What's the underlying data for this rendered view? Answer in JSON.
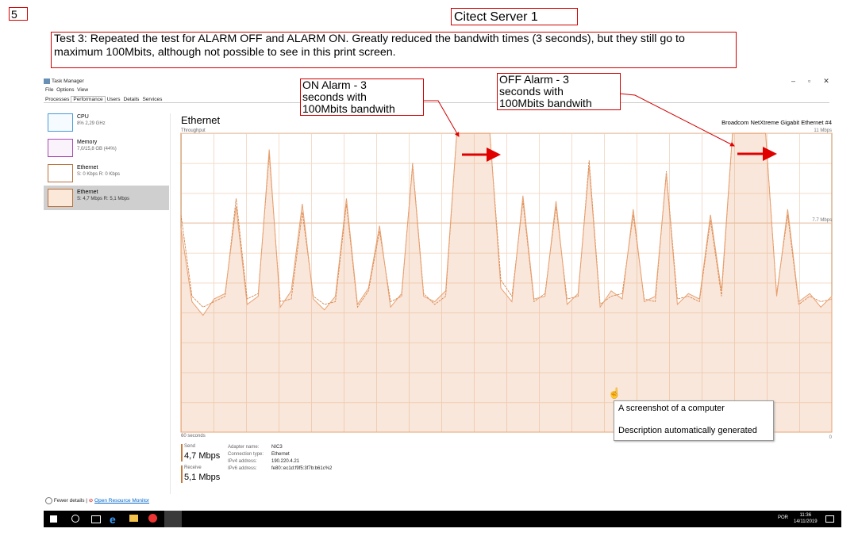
{
  "page_number": "5",
  "header": {
    "title": "Citect Server 1",
    "note": "Test 3: Repeated the test for ALARM OFF and ALARM ON. Greatly reduced the bandwith times (3 seconds), but they still go to maximum 100Mbits, although not possible to see in this print screen."
  },
  "callouts": [
    {
      "lines": [
        "ON Alarm - 3",
        "seconds with",
        "100Mbits bandwith"
      ]
    },
    {
      "lines": [
        "OFF Alarm - 3",
        "seconds with",
        "100Mbits bandwith"
      ]
    }
  ],
  "task_manager": {
    "title": "Task Manager",
    "menu": [
      "File",
      "Options",
      "View"
    ],
    "tabs": [
      "Processes",
      "Performance",
      "Users",
      "Details",
      "Services"
    ],
    "sidebar": [
      {
        "name": "CPU",
        "detail": "8% 2,29 GHz"
      },
      {
        "name": "Memory",
        "detail": "7,0/15,8 GB (44%)"
      },
      {
        "name": "Ethernet",
        "detail": "S: 0 Kbps R: 0 Kbps"
      },
      {
        "name": "Ethernet",
        "detail": "S: 4,7 Mbps R: 5,1 Mbps"
      }
    ],
    "adapter_title": "Ethernet",
    "adapter_model": "Broadcom NetXtreme Gigabit Ethernet #4",
    "graph": {
      "label": "Throughput",
      "x_label": "60 seconds",
      "ylim": [
        0,
        11
      ],
      "yticks": [
        {
          "value": 0,
          "label": "0"
        },
        {
          "value": 7.7,
          "label": "7.7 Mbps"
        },
        {
          "value": 11,
          "label": "11 Mbps"
        }
      ],
      "series": [
        {
          "name": "Send",
          "color": "#d07838",
          "values": [
            8.0,
            5.0,
            4.6,
            4.8,
            5.0,
            8.6,
            4.9,
            5.1,
            10.2,
            4.8,
            4.9,
            8.1,
            5.0,
            4.7,
            4.8,
            8.4,
            4.6,
            5.2,
            7.4,
            4.8,
            5.0,
            9.9,
            5.1,
            4.7,
            5.0,
            11,
            11,
            11,
            11,
            5.6,
            5.0,
            8.5,
            4.8,
            5.1,
            8.3,
            4.9,
            5.0,
            10.0,
            4.7,
            5.0,
            5.1,
            8.0,
            4.9,
            4.8,
            9.6,
            4.9,
            5.0,
            4.8,
            7.8,
            5.0,
            11,
            11,
            11,
            11,
            5.1,
            8.0,
            4.7,
            5.0,
            4.8,
            4.9
          ]
        },
        {
          "name": "Receive",
          "color": "#e8a070",
          "values": [
            7.5,
            4.8,
            4.3,
            4.9,
            5.1,
            8.3,
            4.7,
            5.0,
            10.4,
            4.6,
            5.2,
            8.4,
            4.9,
            4.5,
            5.0,
            8.6,
            4.7,
            5.3,
            7.6,
            4.6,
            5.1,
            9.8,
            5.0,
            4.8,
            5.2,
            11,
            11,
            11,
            11,
            5.3,
            4.8,
            8.7,
            4.9,
            5.0,
            8.5,
            4.7,
            5.1,
            9.8,
            4.6,
            5.2,
            4.9,
            8.2,
            4.8,
            5.0,
            9.5,
            4.7,
            5.1,
            4.9,
            8.0,
            5.2,
            11,
            11,
            11,
            11,
            5.0,
            8.2,
            4.8,
            5.1,
            4.6,
            5.0
          ]
        }
      ]
    },
    "send_value": "4,7 Mbps",
    "receive_value": "5,1 Mbps",
    "properties": [
      {
        "label": "Adapter name:",
        "value": "NIC3"
      },
      {
        "label": "Connection type:",
        "value": "Ethernet"
      },
      {
        "label": "IPv4 address:",
        "value": "190.220.4.21"
      },
      {
        "label": "IPv6 address:",
        "value": "fe80::ec1d:f9f5:3f7b:b61c%2"
      }
    ],
    "fewer_details": "Fewer details",
    "resource_monitor": "Open Resource Monitor"
  },
  "tooltip": {
    "title": "A screenshot of a computer",
    "description": "Description automatically generated"
  },
  "taskbar": {
    "language": "POR",
    "time": "11:36",
    "date": "14/11/2019"
  }
}
